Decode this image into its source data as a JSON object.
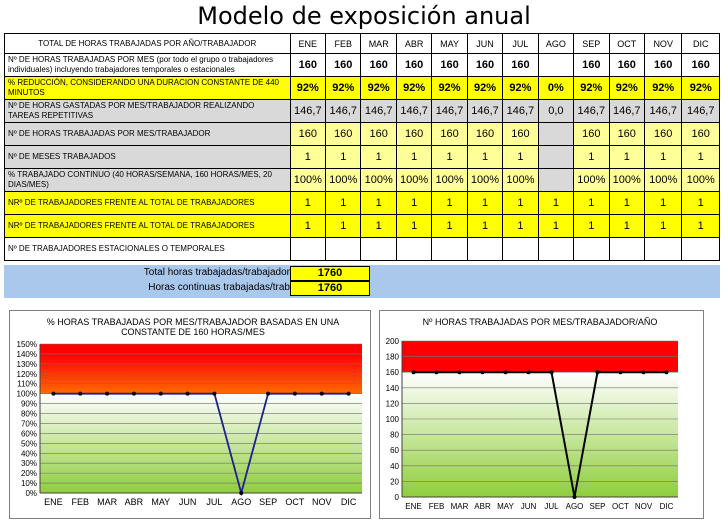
{
  "page_title": "Modelo de exposición anual",
  "table": {
    "header_label": "TOTAL DE HORAS TRABAJADAS POR AÑO/TRABAJADOR",
    "months": [
      "ENE",
      "FEB",
      "MAR",
      "ABR",
      "MAY",
      "JUN",
      "JUL",
      "AGO",
      "SEP",
      "OCT",
      "NOV",
      "DIC"
    ],
    "rows": [
      {
        "label": "Nº DE HORAS TRABAJADAS POR MES (por todo el grupo o trabajadores individuales) incluyendo trabajadores temporales o estacionales",
        "values": [
          "160",
          "160",
          "160",
          "160",
          "160",
          "160",
          "160",
          "",
          "160",
          "160",
          "160",
          "160"
        ]
      },
      {
        "label": "% REDUCCIÓN, CONSIDERANDO UNA DURACION CONSTANTE DE 440 MINUTOS",
        "values": [
          "92%",
          "92%",
          "92%",
          "92%",
          "92%",
          "92%",
          "92%",
          "0%",
          "92%",
          "92%",
          "92%",
          "92%"
        ]
      },
      {
        "label": "Nº DE HORAS GASTADAS POR MES/TRABAJADOR REALIZANDO TAREAS REPETITIVAS",
        "values": [
          "146,7",
          "146,7",
          "146,7",
          "146,7",
          "146,7",
          "146,7",
          "146,7",
          "0,0",
          "146,7",
          "146,7",
          "146,7",
          "146,7"
        ]
      },
      {
        "label": "Nº DE HORAS TRABAJADAS POR MES/TRABAJADOR",
        "values": [
          "160",
          "160",
          "160",
          "160",
          "160",
          "160",
          "160",
          "",
          "160",
          "160",
          "160",
          "160"
        ]
      },
      {
        "label": "Nº DE MESES TRABAJADOS",
        "values": [
          "1",
          "1",
          "1",
          "1",
          "1",
          "1",
          "1",
          "",
          "1",
          "1",
          "1",
          "1"
        ]
      },
      {
        "label": "% TRABAJADO CONTINUO (40 HORAS/SEMANA, 160 HORAS/MES, 20 DIAS/MES)",
        "values": [
          "100%",
          "100%",
          "100%",
          "100%",
          "100%",
          "100%",
          "100%",
          "",
          "100%",
          "100%",
          "100%",
          "100%"
        ]
      },
      {
        "label": "NRº  DE TRABAJADORES FRENTE AL TOTAL DE TRABAJADORES",
        "values": [
          "1",
          "1",
          "1",
          "1",
          "1",
          "1",
          "1",
          "1",
          "1",
          "1",
          "1",
          "1"
        ]
      },
      {
        "label": "NRº  DE TRABAJADORES FRENTE AL TOTAL DE TRABAJADORES",
        "values": [
          "1",
          "1",
          "1",
          "1",
          "1",
          "1",
          "1",
          "1",
          "1",
          "1",
          "1",
          "1"
        ]
      },
      {
        "label": "Nº DE TRABAJADORES ESTACIONALES O TEMPORALES",
        "values": [
          "",
          "",
          "",
          "",
          "",
          "",
          "",
          "",
          "",
          "",
          "",
          ""
        ]
      }
    ]
  },
  "totals": {
    "total_label": "Total horas trabajadas/trabajador",
    "total_value": "1760",
    "continuous_label": "Horas continuas trabajadas/trab",
    "continuous_value": "1760"
  },
  "colors": {
    "cell_gray": "#d9d9d9",
    "cell_yellow": "#ffff00",
    "cell_light_yellow": "#ffff99",
    "totals_band": "#a9c8ec",
    "zone_red": "#ff0000",
    "zone_orange": "#ff6a00",
    "zone_green_dark": "#8fce3c",
    "line_blue": "#1f1f8f",
    "line_black": "#000000"
  },
  "chart_data": [
    {
      "type": "line",
      "title": "% HORAS TRABAJADAS POR MES/TRABAJADOR BASADAS EN UNA CONSTANTE DE 160 HORAS/MES",
      "categories": [
        "ENE",
        "FEB",
        "MAR",
        "ABR",
        "MAY",
        "JUN",
        "JUL",
        "AGO",
        "SEP",
        "OCT",
        "NOV",
        "DIC"
      ],
      "values": [
        100,
        100,
        100,
        100,
        100,
        100,
        100,
        0,
        100,
        100,
        100,
        100
      ],
      "ylim": [
        0,
        150
      ],
      "ytick_step": 10,
      "ytick_suffix": "%",
      "bands": [
        {
          "from": 100,
          "to": 140,
          "style": "orange-red"
        },
        {
          "from": 140,
          "to": 150,
          "style": "red"
        },
        {
          "from": 0,
          "to": 100,
          "style": "green"
        }
      ],
      "grid": true,
      "legend": "none"
    },
    {
      "type": "line",
      "title": "Nº HORAS TRABAJADAS POR MES/TRABAJADOR/AÑO",
      "categories": [
        "ENE",
        "FEB",
        "MAR",
        "ABR",
        "MAY",
        "JUN",
        "JUL",
        "AGO",
        "SEP",
        "OCT",
        "NOV",
        "DIC"
      ],
      "values": [
        160,
        160,
        160,
        160,
        160,
        160,
        160,
        0,
        160,
        160,
        160,
        160
      ],
      "ylim": [
        0,
        200
      ],
      "ytick_step": 20,
      "ytick_suffix": "",
      "bands": [
        {
          "from": 160,
          "to": 200,
          "style": "red"
        },
        {
          "from": 0,
          "to": 160,
          "style": "green"
        }
      ],
      "grid": true,
      "legend": "none"
    }
  ]
}
